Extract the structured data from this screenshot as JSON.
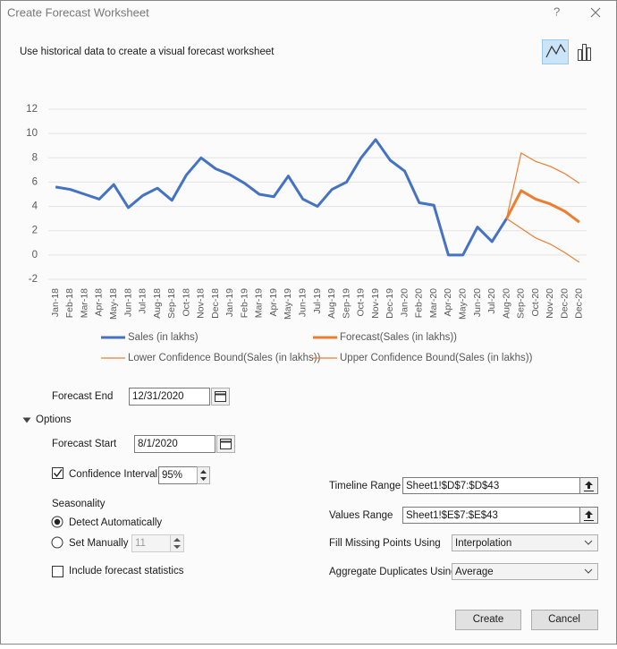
{
  "dialog": {
    "title": "Create Forecast Worksheet",
    "help": "?"
  },
  "description": "Use historical data to create a visual forecast worksheet",
  "chart_data": {
    "type": "line",
    "categories": [
      "Jan-18",
      "Feb-18",
      "Mar-18",
      "Apr-18",
      "May-18",
      "Jun-18",
      "Jul-18",
      "Aug-18",
      "Sep-18",
      "Oct-18",
      "Nov-18",
      "Dec-18",
      "Jan-19",
      "Feb-19",
      "Mar-19",
      "Apr-19",
      "May-19",
      "Jun-19",
      "Jul-19",
      "Aug-19",
      "Sep-19",
      "Oct-19",
      "Nov-19",
      "Dec-19",
      "Jan-20",
      "Feb-20",
      "Mar-20",
      "Apr-20",
      "May-20",
      "Jun-20",
      "Jul-20",
      "Aug-20",
      "Sep-20",
      "Oct-20",
      "Nov-20",
      "Dec-20",
      "Dec-20"
    ],
    "series": [
      {
        "name": "Sales (in lakhs)",
        "color": "#4472c4",
        "width": 3,
        "values": [
          5.6,
          5.4,
          5.0,
          4.6,
          5.8,
          3.9,
          4.9,
          5.5,
          4.5,
          6.6,
          8.0,
          7.1,
          6.6,
          5.9,
          5.0,
          4.8,
          6.5,
          4.6,
          4.0,
          5.4,
          6.0,
          8.0,
          9.5,
          7.8,
          6.9,
          4.3,
          4.1,
          0,
          0,
          2.3,
          1.1,
          3.0,
          null,
          null,
          null,
          null,
          null
        ]
      },
      {
        "name": "Forecast(Sales (in lakhs))",
        "color": "#ed7d31",
        "width": 3,
        "values": [
          null,
          null,
          null,
          null,
          null,
          null,
          null,
          null,
          null,
          null,
          null,
          null,
          null,
          null,
          null,
          null,
          null,
          null,
          null,
          null,
          null,
          null,
          null,
          null,
          null,
          null,
          null,
          null,
          null,
          null,
          null,
          3.0,
          5.3,
          4.6,
          4.2,
          3.6,
          2.7
        ]
      },
      {
        "name": "Lower Confidence Bound(Sales (in lakhs))",
        "color": "#ed7d31",
        "width": 1.2,
        "values": [
          null,
          null,
          null,
          null,
          null,
          null,
          null,
          null,
          null,
          null,
          null,
          null,
          null,
          null,
          null,
          null,
          null,
          null,
          null,
          null,
          null,
          null,
          null,
          null,
          null,
          null,
          null,
          null,
          null,
          null,
          null,
          3.0,
          2.2,
          1.4,
          0.9,
          0.2,
          -0.6
        ]
      },
      {
        "name": "Upper Confidence Bound(Sales (in lakhs))",
        "color": "#ed7d31",
        "width": 1.2,
        "values": [
          null,
          null,
          null,
          null,
          null,
          null,
          null,
          null,
          null,
          null,
          null,
          null,
          null,
          null,
          null,
          null,
          null,
          null,
          null,
          null,
          null,
          null,
          null,
          null,
          null,
          null,
          null,
          null,
          null,
          null,
          null,
          3.0,
          8.4,
          7.7,
          7.3,
          6.7,
          5.9
        ]
      }
    ],
    "ylim": [
      -2,
      12
    ],
    "yticks": [
      -2,
      0,
      2,
      4,
      6,
      8,
      10,
      12
    ],
    "grid": true,
    "legend": "bottom"
  },
  "form": {
    "forecast_end": {
      "label": "Forecast End",
      "value": "12/31/2020"
    },
    "options": "Options",
    "forecast_start": {
      "label": "Forecast Start",
      "value": "8/1/2020"
    },
    "confidence": {
      "label": "Confidence Interval",
      "value": "95%",
      "checked": true
    },
    "seasonality": {
      "label": "Seasonality",
      "detect": {
        "label": "Detect Automatically",
        "selected": true
      },
      "manual": {
        "label": "Set Manually",
        "value": "11",
        "selected": false
      }
    },
    "statistics": {
      "label": "Include forecast statistics",
      "checked": false
    },
    "timeline": {
      "label": "Timeline Range",
      "value": "Sheet1!$D$7:$D$43"
    },
    "values_range": {
      "label": "Values Range",
      "value": "Sheet1!$E$7:$E$43"
    },
    "fill": {
      "label": "Fill Missing Points Using",
      "value": "Interpolation"
    },
    "aggregate": {
      "label": "Aggregate Duplicates Using",
      "value": "Average"
    },
    "create": "Create",
    "cancel": "Cancel"
  }
}
